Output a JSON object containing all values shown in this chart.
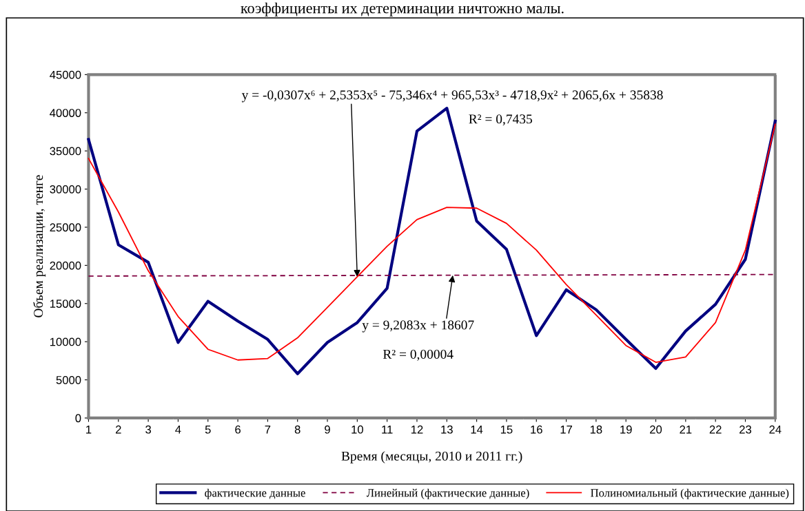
{
  "chart_data": {
    "type": "line",
    "xlabel": "Время (месяцы, 2010 и 2011 гг.)",
    "ylabel": "Объем реализации, тенге",
    "x": [
      1,
      2,
      3,
      4,
      5,
      6,
      7,
      8,
      9,
      10,
      11,
      12,
      13,
      14,
      15,
      16,
      17,
      18,
      19,
      20,
      21,
      22,
      23,
      24
    ],
    "series": [
      {
        "name": "фактические данные",
        "color": "#000080",
        "line_style": "solid",
        "values": [
          36500,
          22700,
          20400,
          9900,
          15300,
          12700,
          10300,
          5800,
          9900,
          12500,
          17000,
          37600,
          40600,
          25800,
          22100,
          10800,
          16800,
          14200,
          10300,
          6500,
          11400,
          14900,
          20800,
          38900
        ]
      },
      {
        "name": "Линейный (фактические данные)",
        "color": "#800040",
        "line_style": "dashed",
        "x": [
          1,
          24
        ],
        "values": [
          18600,
          18800
        ]
      },
      {
        "name": "Полиномиальный (фактические данные)",
        "color": "#ff0000",
        "line_style": "solid",
        "values": [
          34000,
          27000,
          19300,
          13300,
          9000,
          7600,
          7800,
          10500,
          14500,
          18500,
          22500,
          26000,
          27600,
          27500,
          25500,
          22000,
          17500,
          13500,
          9500,
          7300,
          8000,
          12500,
          22000,
          38500
        ]
      }
    ],
    "xlim": [
      1,
      24
    ],
    "xticks": [
      1,
      2,
      3,
      4,
      5,
      6,
      7,
      8,
      9,
      10,
      11,
      12,
      13,
      14,
      15,
      16,
      17,
      18,
      19,
      20,
      21,
      22,
      23,
      24
    ],
    "ylim": [
      0,
      45000
    ],
    "yticks": [
      0,
      5000,
      10000,
      15000,
      20000,
      25000,
      30000,
      35000,
      40000,
      45000
    ],
    "grid": false,
    "legend": "bottom",
    "marker": "none",
    "annotations": [
      "коэффициенты их детерминации ничтожно малы.",
      {
        "text": "y = -0,0307x⁶ + 2,5353x⁵ - 75,346x⁴ + 965,53x³ - 4718,9x² + 2065,6x + 35838",
        "x": 10,
        "y": 18500
      },
      "R² = 0,7435",
      {
        "text": "y = 9,2083x + 18607",
        "x": 13.2,
        "y": 18700
      },
      "R² = 0,00004"
    ]
  }
}
